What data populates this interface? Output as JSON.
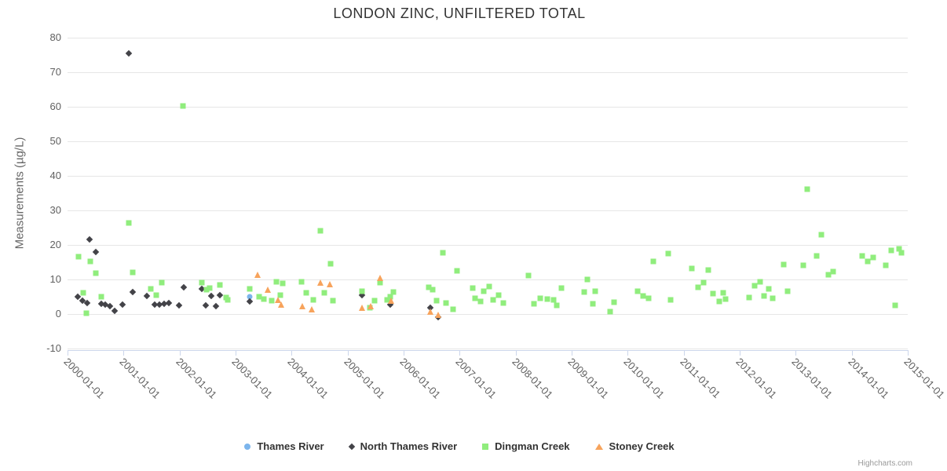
{
  "title": "LONDON ZINC, UNFILTERED TOTAL",
  "credits_label": "Highcharts.com",
  "chart_data": {
    "type": "scatter",
    "title": "LONDON ZINC, UNFILTERED TOTAL",
    "xlabel": "",
    "ylabel": "Measurements (µg/L)",
    "ylim": [
      -10,
      80
    ],
    "y_ticks": [
      80,
      70,
      60,
      50,
      40,
      30,
      20,
      10,
      0,
      -10
    ],
    "x_tick_labels": [
      "2000-01-01",
      "2001-01-01",
      "2002-01-01",
      "2003-01-01",
      "2004-01-01",
      "2005-01-01",
      "2006-01-01",
      "2007-01-01",
      "2008-01-01",
      "2009-01-01",
      "2010-01-01",
      "2011-01-01",
      "2012-01-01",
      "2013-01-01",
      "2014-01-01",
      "2015-01-01"
    ],
    "x_years_span": 15,
    "grid": true,
    "legend_position": "bottom-center",
    "series": [
      {
        "name": "Thames River",
        "color": "#7cb5ec",
        "marker": "circle",
        "points_note": "x = years since 2000-01-01, y = µg/L",
        "points": [
          [
            3.25,
            5.0
          ]
        ]
      },
      {
        "name": "North Thames River",
        "color": "#434348",
        "marker": "diamond",
        "points": [
          [
            0.18,
            5.0
          ],
          [
            0.27,
            3.9
          ],
          [
            0.35,
            3.2
          ],
          [
            0.39,
            21.6
          ],
          [
            0.5,
            18.0
          ],
          [
            0.6,
            3.0
          ],
          [
            0.67,
            2.7
          ],
          [
            0.76,
            2.3
          ],
          [
            0.84,
            0.9
          ],
          [
            0.98,
            2.7
          ],
          [
            1.09,
            75.5
          ],
          [
            1.16,
            6.4
          ],
          [
            1.42,
            5.2
          ],
          [
            1.56,
            2.7
          ],
          [
            1.64,
            2.7
          ],
          [
            1.73,
            3.0
          ],
          [
            1.81,
            3.2
          ],
          [
            1.99,
            2.5
          ],
          [
            2.08,
            7.7
          ],
          [
            2.4,
            7.3
          ],
          [
            2.47,
            2.5
          ],
          [
            2.57,
            5.2
          ],
          [
            2.65,
            2.3
          ],
          [
            2.72,
            5.5
          ],
          [
            3.25,
            3.7
          ],
          [
            5.26,
            5.5
          ],
          [
            5.76,
            2.7
          ],
          [
            6.47,
            1.8
          ],
          [
            6.61,
            -0.9
          ]
        ]
      },
      {
        "name": "Dingman Creek",
        "color": "#90ed7d",
        "marker": "square",
        "points": [
          [
            0.2,
            16.6
          ],
          [
            0.28,
            6.1
          ],
          [
            0.34,
            0.2
          ],
          [
            0.41,
            15.2
          ],
          [
            0.5,
            11.8
          ],
          [
            0.6,
            5.0
          ],
          [
            1.09,
            26.4
          ],
          [
            1.16,
            12.0
          ],
          [
            1.49,
            7.3
          ],
          [
            1.58,
            5.5
          ],
          [
            1.68,
            9.1
          ],
          [
            2.06,
            60.2
          ],
          [
            2.4,
            9.1
          ],
          [
            2.48,
            7.0
          ],
          [
            2.54,
            7.5
          ],
          [
            2.72,
            8.4
          ],
          [
            2.83,
            4.8
          ],
          [
            2.86,
            4.1
          ],
          [
            3.25,
            7.3
          ],
          [
            3.42,
            5.0
          ],
          [
            3.51,
            4.3
          ],
          [
            3.65,
            3.9
          ],
          [
            3.73,
            9.3
          ],
          [
            3.8,
            5.5
          ],
          [
            3.84,
            8.9
          ],
          [
            4.18,
            9.3
          ],
          [
            4.26,
            6.1
          ],
          [
            4.39,
            4.1
          ],
          [
            4.52,
            24.1
          ],
          [
            4.59,
            6.1
          ],
          [
            4.7,
            14.5
          ],
          [
            4.74,
            3.9
          ],
          [
            5.26,
            6.6
          ],
          [
            5.4,
            1.8
          ],
          [
            5.48,
            3.9
          ],
          [
            5.58,
            9.1
          ],
          [
            5.71,
            4.1
          ],
          [
            5.76,
            5.0
          ],
          [
            5.82,
            6.4
          ],
          [
            6.45,
            7.7
          ],
          [
            6.52,
            7.0
          ],
          [
            6.59,
            3.9
          ],
          [
            6.7,
            17.7
          ],
          [
            6.76,
            3.2
          ],
          [
            6.89,
            1.4
          ],
          [
            6.96,
            12.5
          ],
          [
            7.24,
            7.5
          ],
          [
            7.28,
            4.5
          ],
          [
            7.38,
            3.6
          ],
          [
            7.43,
            6.6
          ],
          [
            7.53,
            8.0
          ],
          [
            7.6,
            4.1
          ],
          [
            7.69,
            5.5
          ],
          [
            7.78,
            3.2
          ],
          [
            8.23,
            11.1
          ],
          [
            8.33,
            3.0
          ],
          [
            8.44,
            4.5
          ],
          [
            8.57,
            4.3
          ],
          [
            8.68,
            4.1
          ],
          [
            8.74,
            2.5
          ],
          [
            8.82,
            7.5
          ],
          [
            9.23,
            6.4
          ],
          [
            9.28,
            10.0
          ],
          [
            9.38,
            3.0
          ],
          [
            9.42,
            6.6
          ],
          [
            9.68,
            0.7
          ],
          [
            9.76,
            3.4
          ],
          [
            10.18,
            6.6
          ],
          [
            10.27,
            5.2
          ],
          [
            10.38,
            4.5
          ],
          [
            10.46,
            15.2
          ],
          [
            10.73,
            17.5
          ],
          [
            10.77,
            4.1
          ],
          [
            11.15,
            13.2
          ],
          [
            11.26,
            7.7
          ],
          [
            11.35,
            9.1
          ],
          [
            11.44,
            12.7
          ],
          [
            11.53,
            5.9
          ],
          [
            11.63,
            3.6
          ],
          [
            11.7,
            6.1
          ],
          [
            11.75,
            4.3
          ],
          [
            12.17,
            4.8
          ],
          [
            12.27,
            8.2
          ],
          [
            12.36,
            9.3
          ],
          [
            12.44,
            5.2
          ],
          [
            12.52,
            7.3
          ],
          [
            12.59,
            4.5
          ],
          [
            12.79,
            14.3
          ],
          [
            12.86,
            6.6
          ],
          [
            13.14,
            14.1
          ],
          [
            13.21,
            36.1
          ],
          [
            13.37,
            16.8
          ],
          [
            13.46,
            23.0
          ],
          [
            13.59,
            11.4
          ],
          [
            13.67,
            12.3
          ],
          [
            14.18,
            16.8
          ],
          [
            14.29,
            15.2
          ],
          [
            14.39,
            16.4
          ],
          [
            14.61,
            14.1
          ],
          [
            14.7,
            18.4
          ],
          [
            14.78,
            2.5
          ],
          [
            14.84,
            18.9
          ],
          [
            14.89,
            17.7
          ]
        ]
      },
      {
        "name": "Stoney Creek",
        "color": "#f7a35c",
        "marker": "triangle",
        "points": [
          [
            3.39,
            11.4
          ],
          [
            3.58,
            7.0
          ],
          [
            3.76,
            4.1
          ],
          [
            3.81,
            2.7
          ],
          [
            4.19,
            2.3
          ],
          [
            4.36,
            1.4
          ],
          [
            4.52,
            9.1
          ],
          [
            4.68,
            8.6
          ],
          [
            5.26,
            1.8
          ],
          [
            5.41,
            2.3
          ],
          [
            5.58,
            10.5
          ],
          [
            5.78,
            3.9
          ],
          [
            6.47,
            0.7
          ],
          [
            6.61,
            -0.2
          ]
        ]
      }
    ]
  }
}
